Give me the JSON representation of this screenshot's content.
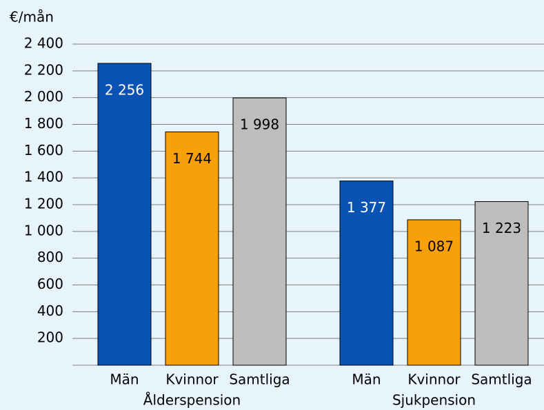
{
  "chart_data": {
    "type": "bar",
    "y_label": "€/mån",
    "categories": [
      "Ålderspension",
      "Sjukpension"
    ],
    "series": [
      {
        "name": "Män",
        "color": "#0a52b4",
        "label_color": "#ffffff",
        "values": [
          2256,
          1377
        ],
        "value_labels": [
          "2 256",
          "1 377"
        ]
      },
      {
        "name": "Kvinnor",
        "color": "#f8a00a",
        "label_color": "#000000",
        "values": [
          1744,
          1087
        ],
        "value_labels": [
          "1 744",
          "1 087"
        ]
      },
      {
        "name": "Samtliga",
        "color": "#bdbdbd",
        "label_color": "#000000",
        "values": [
          1998,
          1223
        ],
        "value_labels": [
          "1 998",
          "1 223"
        ]
      }
    ],
    "ylim": [
      0,
      2400
    ],
    "yticks": [
      200,
      400,
      600,
      800,
      {
        "value": 1000,
        "label": "1 000"
      },
      {
        "value": 1200,
        "label": "1 200"
      },
      {
        "value": 1400,
        "label": "1 400"
      },
      {
        "value": 1600,
        "label": "1 600"
      },
      {
        "value": 1800,
        "label": "1 800"
      },
      {
        "value": 2000,
        "label": "2 000"
      },
      {
        "value": 2200,
        "label": "2 200"
      },
      {
        "value": 2400,
        "label": "2 400"
      }
    ],
    "grid": true
  }
}
